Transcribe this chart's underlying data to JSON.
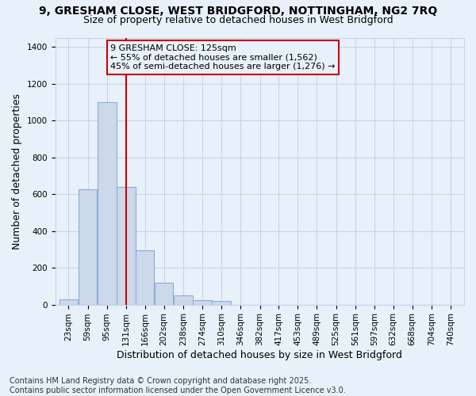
{
  "title_line1": "9, GRESHAM CLOSE, WEST BRIDGFORD, NOTTINGHAM, NG2 7RQ",
  "title_line2": "Size of property relative to detached houses in West Bridgford",
  "xlabel": "Distribution of detached houses by size in West Bridgford",
  "ylabel": "Number of detached properties",
  "bar_color": "#ccd9eb",
  "bar_edge_color": "#8aafd4",
  "grid_color": "#c5d5e8",
  "background_color": "#e8f0fa",
  "vline_color": "#cc0000",
  "vline_x": 131,
  "annotation_box_color": "#cc0000",
  "annotation_text_line1": "9 GRESHAM CLOSE: 125sqm",
  "annotation_text_line2": "← 55% of detached houses are smaller (1,562)",
  "annotation_text_line3": "45% of semi-detached houses are larger (1,276) →",
  "categories": [
    23,
    59,
    95,
    131,
    166,
    202,
    238,
    274,
    310,
    346,
    382,
    417,
    453,
    489,
    525,
    561,
    597,
    632,
    668,
    704,
    740
  ],
  "bar_heights": [
    30,
    625,
    1100,
    640,
    295,
    120,
    50,
    25,
    20,
    0,
    0,
    0,
    0,
    0,
    0,
    0,
    0,
    0,
    0,
    0,
    0
  ],
  "ylim": [
    0,
    1450
  ],
  "yticks": [
    0,
    200,
    400,
    600,
    800,
    1000,
    1200,
    1400
  ],
  "bin_width": 36,
  "footnote_line1": "Contains HM Land Registry data © Crown copyright and database right 2025.",
  "footnote_line2": "Contains public sector information licensed under the Open Government Licence v3.0.",
  "title_fontsize": 10,
  "subtitle_fontsize": 9,
  "axis_label_fontsize": 9,
  "tick_fontsize": 7.5,
  "annotation_fontsize": 8,
  "footnote_fontsize": 7
}
